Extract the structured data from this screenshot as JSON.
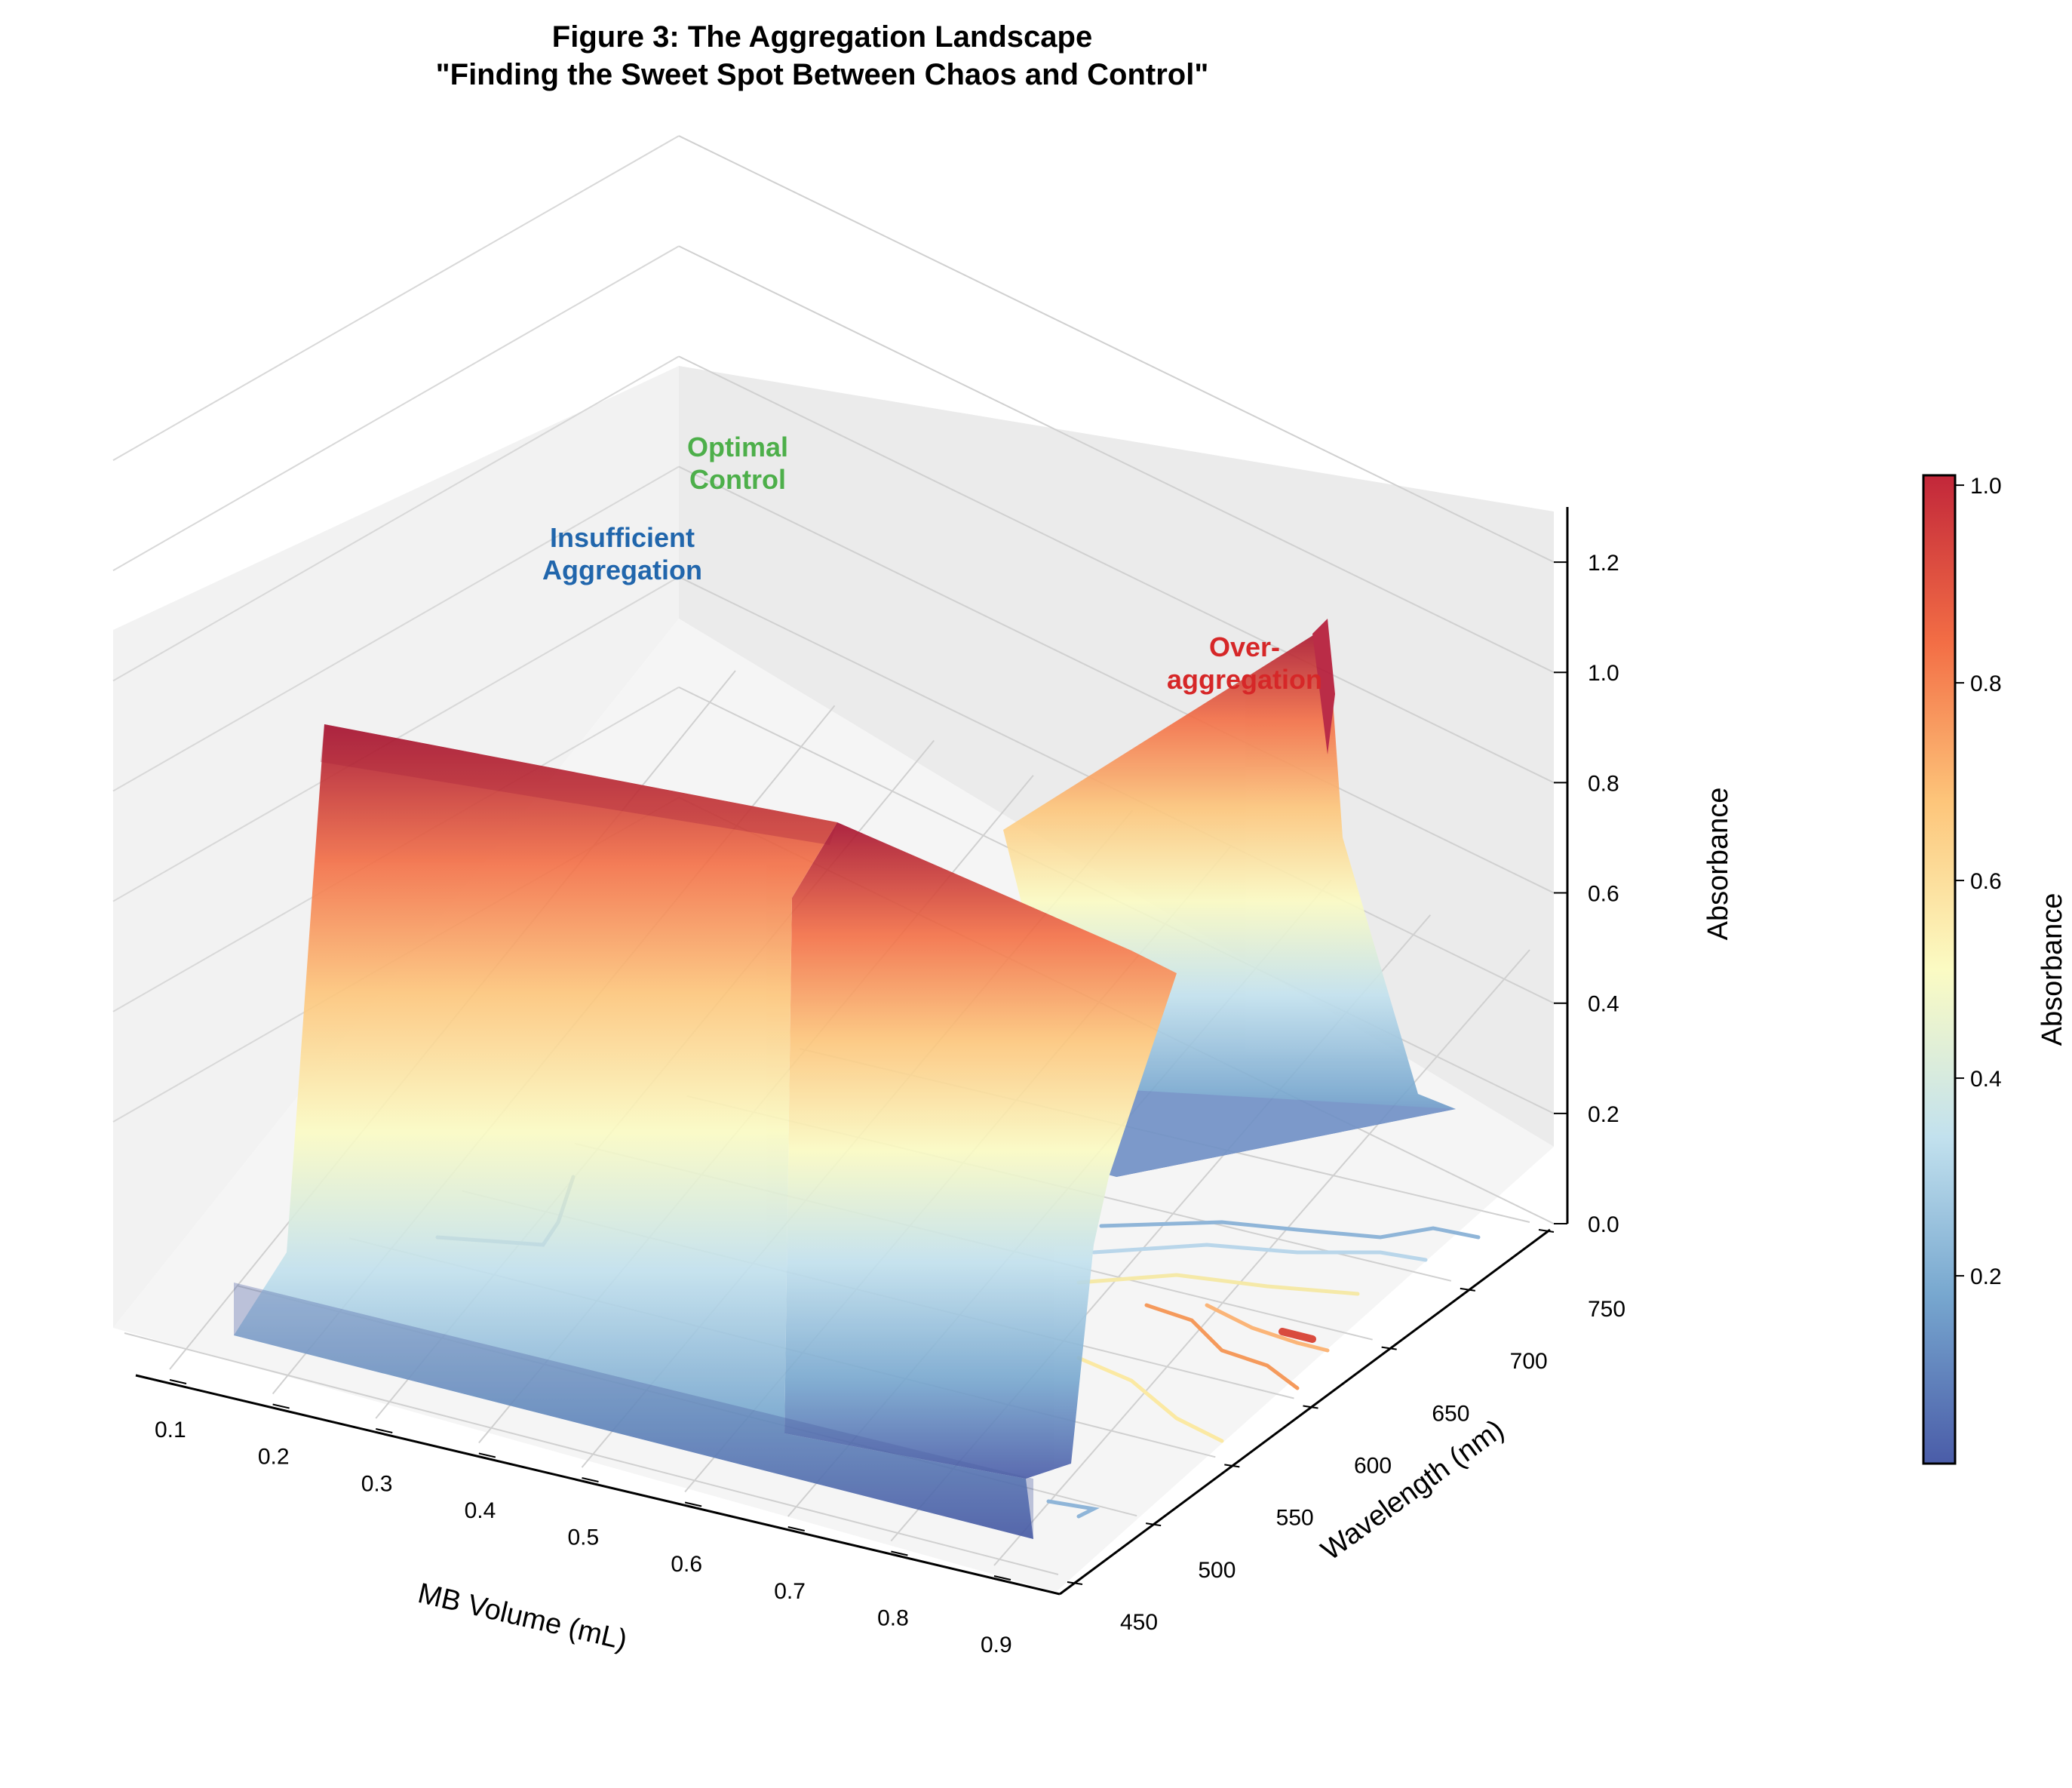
{
  "chart_data": {
    "type": "surface3d",
    "title_line1": "Figure 3: The Aggregation Landscape",
    "title_line2": "\"Finding the Sweet Spot Between Chaos and Control\"",
    "xlabel": "MB Volume (mL)",
    "ylabel": "Wavelength (nm)",
    "zlabel": "Absorbance",
    "colorbar_label": "Absorbance",
    "colormap": [
      "#4a5ca8",
      "#77a7cf",
      "#c2e1ee",
      "#fbfbc3",
      "#fdc57a",
      "#f36e45",
      "#c2273a"
    ],
    "xlim": [
      0.05,
      0.95
    ],
    "ylim": [
      425,
      770
    ],
    "zlim": [
      0.0,
      1.3
    ],
    "xticks": [
      "0.1",
      "0.2",
      "0.3",
      "0.4",
      "0.5",
      "0.6",
      "0.7",
      "0.8",
      "0.9"
    ],
    "yticks": [
      "450",
      "500",
      "550",
      "600",
      "650",
      "700",
      "750"
    ],
    "zticks": [
      "0.0",
      "0.2",
      "0.4",
      "0.6",
      "0.8",
      "1.0",
      "1.2"
    ],
    "colorbar_ticks": [
      "0.2",
      "0.4",
      "0.6",
      "0.8",
      "1.0"
    ],
    "colorbar_range": [
      0.01,
      1.01
    ],
    "grid": true,
    "surface_ridges": [
      {
        "x": 0.1,
        "y_range": [
          450,
          760
        ],
        "z_max": 1.0
      },
      {
        "x": 0.5,
        "y_range": [
          450,
          760
        ],
        "z_max": 0.85
      },
      {
        "x": 0.9,
        "y_range": [
          450,
          760
        ],
        "z_max": 0.3
      }
    ],
    "annotations": [
      {
        "text": "Insufficient\nAggregation",
        "color": "#2166ac"
      },
      {
        "text": "Optimal\nControl",
        "color": "#4daf4a"
      },
      {
        "text": "Over-\naggregation",
        "color": "#d62728"
      }
    ]
  }
}
